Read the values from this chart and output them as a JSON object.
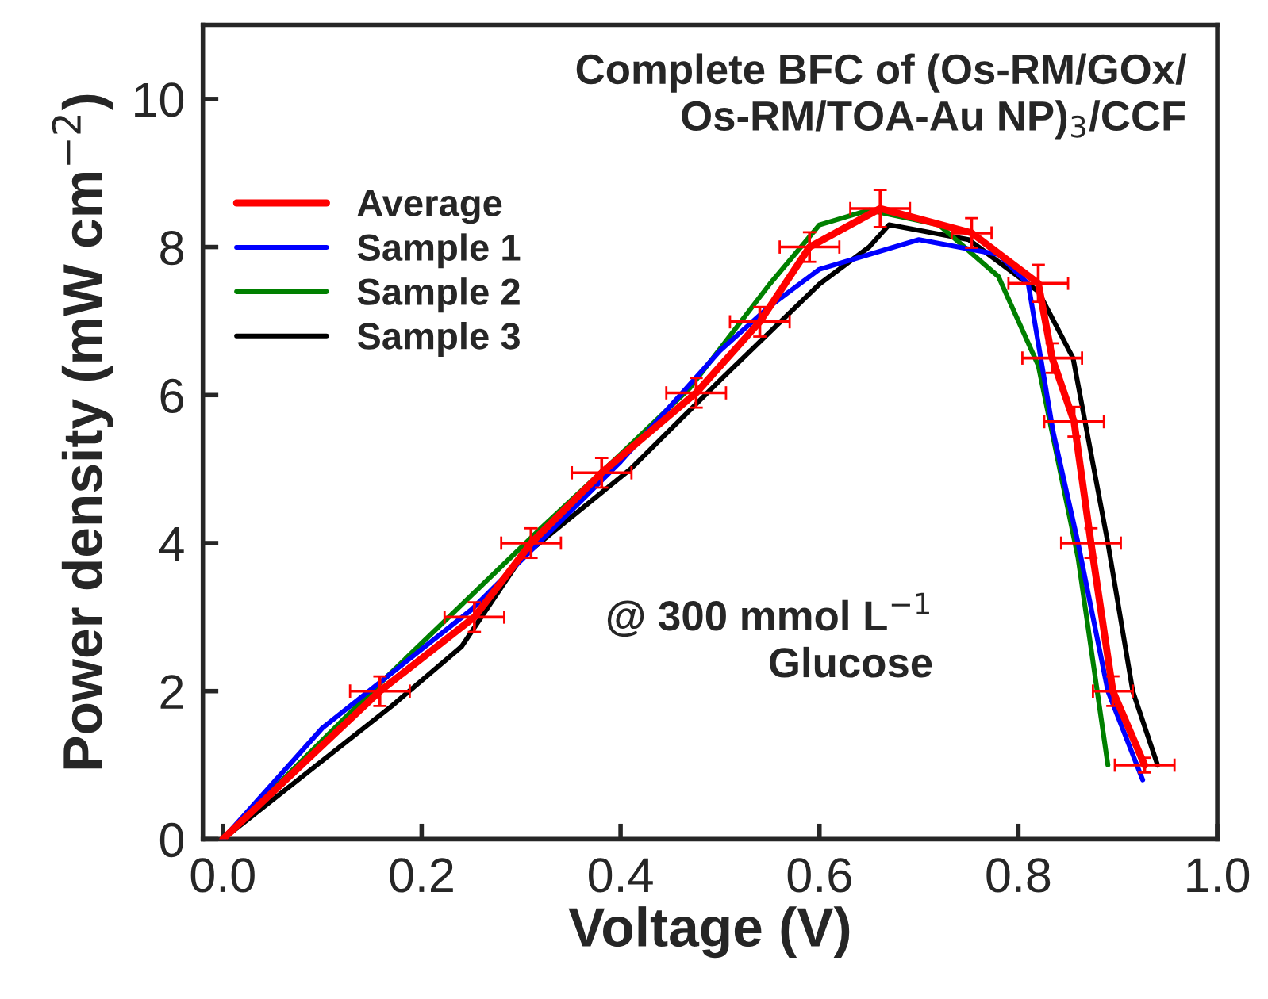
{
  "chart_data": {
    "type": "line",
    "xlabel": "Voltage (V)",
    "ylabel": "Power density (mW cm$^{−2}$)",
    "annotations": [
      "Complete BFC of (Os-RM/GOx/\nOs-RM/TOA-Au NP)$_{3}$/CCF",
      "@ 300 mmol L$^{−1}$\nGlucose"
    ],
    "series": [
      {
        "name": "Average",
        "color": "#ff0000",
        "x": [
          0,
          0.158,
          0.253,
          0.31,
          0.381,
          0.476,
          0.54,
          0.59,
          0.661,
          0.753,
          0.82,
          0.834,
          0.856,
          0.873,
          0.895,
          0.927
        ],
        "values": [
          0,
          2,
          3,
          4,
          4.95,
          6.03,
          6.99,
          8.0,
          8.52,
          8.19,
          7.51,
          6.5,
          5.64,
          4.0,
          2.0,
          1.0
        ],
        "errors": [
          null,
          0.2,
          0.2,
          0.2,
          0.2,
          0.2,
          0.2,
          0.2,
          0.25,
          0.2,
          0.25,
          0.2,
          0.2,
          0.2,
          0.2,
          0.1
        ],
        "xerrors": [
          null,
          0.03,
          0.03,
          0.03,
          0.03,
          0.03,
          0.03,
          0.03,
          0.03,
          0.02,
          0.03,
          0.03,
          0.03,
          0.03,
          0.02,
          0.03
        ]
      },
      {
        "name": "Sample 1",
        "color": "#0000ff",
        "x": [
          0,
          0.1,
          0.25,
          0.31,
          0.4,
          0.5,
          0.55,
          0.6,
          0.7,
          0.78,
          0.81,
          0.835,
          0.86,
          0.89,
          0.925
        ],
        "values": [
          0,
          1.5,
          3.1,
          3.9,
          5.1,
          6.6,
          7.2,
          7.7,
          8.1,
          7.9,
          7.5,
          5.5,
          4.0,
          2.0,
          0.8
        ]
      },
      {
        "name": "Sample 2",
        "color": "#008000",
        "x": [
          0,
          0.15,
          0.32,
          0.4,
          0.47,
          0.55,
          0.6,
          0.65,
          0.72,
          0.78,
          0.82,
          0.86,
          0.89
        ],
        "values": [
          0,
          2.0,
          4.2,
          5.2,
          6.1,
          7.5,
          8.3,
          8.5,
          8.3,
          7.6,
          6.4,
          3.8,
          1.0
        ]
      },
      {
        "name": "Sample 3",
        "color": "#000000",
        "x": [
          0,
          0.17,
          0.24,
          0.3,
          0.41,
          0.5,
          0.6,
          0.65,
          0.67,
          0.75,
          0.82,
          0.855,
          0.89,
          0.915,
          0.94
        ],
        "values": [
          0,
          1.8,
          2.6,
          3.8,
          5.0,
          6.2,
          7.5,
          8.0,
          8.3,
          8.1,
          7.4,
          6.5,
          4.0,
          2.0,
          1.0
        ]
      }
    ],
    "xlim": [
      -0.02,
      1.0
    ],
    "ylim": [
      0,
      11
    ],
    "xticks": [
      {
        "value": 0,
        "label": "0.0"
      },
      {
        "value": 0.2,
        "label": "0.2"
      },
      {
        "value": 0.4,
        "label": "0.4"
      },
      {
        "value": 0.6,
        "label": "0.6"
      },
      {
        "value": 0.8,
        "label": "0.8"
      },
      {
        "value": 1.0,
        "label": "1.0"
      }
    ],
    "yticks": [
      0,
      2,
      4,
      6,
      8,
      10
    ],
    "legend": "upper left",
    "grid": false,
    "marker": "none",
    "line_style": "solid"
  }
}
